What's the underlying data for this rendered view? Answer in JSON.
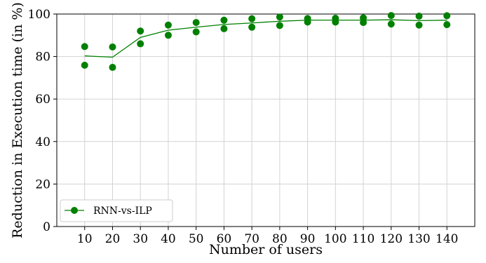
{
  "chart_data": {
    "type": "line",
    "xlabel": "Number of users",
    "ylabel": "Reduction in Execution time (in %)",
    "xlim": [
      0,
      150
    ],
    "ylim": [
      0,
      100
    ],
    "x_ticks": [
      10,
      20,
      30,
      40,
      50,
      60,
      70,
      80,
      90,
      100,
      110,
      120,
      130,
      140
    ],
    "y_ticks": [
      0,
      20,
      40,
      60,
      80,
      100
    ],
    "grid": true,
    "legend_position": "lower-left",
    "series": [
      {
        "name": "RNN-vs-ILP",
        "color": "#008000",
        "marker": "circle",
        "x": [
          10,
          20,
          30,
          40,
          50,
          60,
          70,
          80,
          90,
          100,
          110,
          120,
          130,
          140
        ],
        "y": [
          80.3,
          79.7,
          89.0,
          92.4,
          93.8,
          95.1,
          95.8,
          96.6,
          97.1,
          97.1,
          97.1,
          97.3,
          96.9,
          97.1
        ]
      }
    ],
    "points": {
      "x": [
        10,
        10,
        20,
        20,
        30,
        30,
        40,
        40,
        50,
        50,
        60,
        60,
        70,
        70,
        80,
        80,
        90,
        90,
        100,
        100,
        110,
        110,
        120,
        120,
        130,
        130,
        140,
        140
      ],
      "y": [
        84.7,
        75.9,
        84.5,
        74.9,
        92.0,
        86.0,
        94.8,
        90.0,
        96.0,
        91.6,
        97.1,
        93.1,
        97.8,
        93.8,
        98.6,
        94.6,
        97.9,
        96.2,
        98.0,
        96.2,
        98.2,
        96.0,
        99.3,
        95.3,
        99.0,
        94.8,
        99.2,
        95.0
      ]
    }
  }
}
